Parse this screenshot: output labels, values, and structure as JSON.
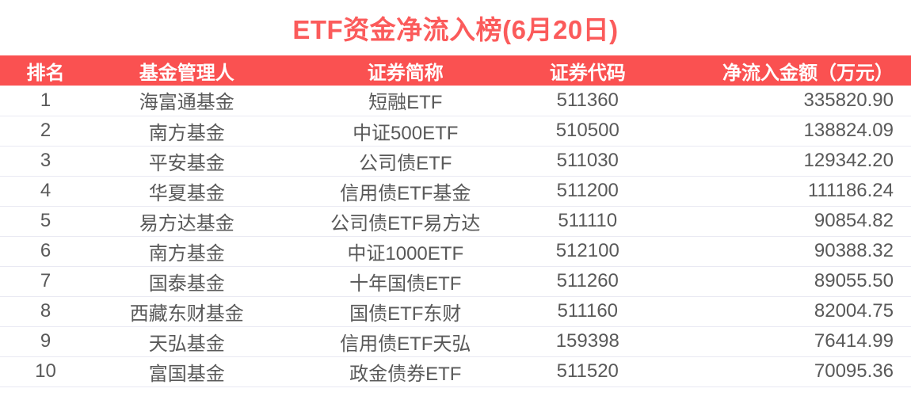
{
  "title": "ETF资金净流入榜(6月20日)",
  "chart_data": {
    "type": "table",
    "title": "ETF资金净流入榜(6月20日)",
    "columns": [
      "排名",
      "基金管理人",
      "证券简称",
      "证券代码",
      "净流入金额（万元）"
    ],
    "rows": [
      [
        "1",
        "海富通基金",
        "短融ETF",
        "511360",
        "335820.90"
      ],
      [
        "2",
        "南方基金",
        "中证500ETF",
        "510500",
        "138824.09"
      ],
      [
        "3",
        "平安基金",
        "公司债ETF",
        "511030",
        "129342.20"
      ],
      [
        "4",
        "华夏基金",
        "信用债ETF基金",
        "511200",
        "111186.24"
      ],
      [
        "5",
        "易方达基金",
        "公司债ETF易方达",
        "511110",
        "90854.82"
      ],
      [
        "6",
        "南方基金",
        "中证1000ETF",
        "512100",
        "90388.32"
      ],
      [
        "7",
        "国泰基金",
        "十年国债ETF",
        "511260",
        "89055.50"
      ],
      [
        "8",
        "西藏东财基金",
        "国债ETF东财",
        "511160",
        "82004.75"
      ],
      [
        "9",
        "天弘基金",
        "信用债ETF天弘",
        "159398",
        "76414.99"
      ],
      [
        "10",
        "富国基金",
        "政金债券ETF",
        "511520",
        "70095.36"
      ]
    ]
  },
  "colors": {
    "accent_red": "#fa5151",
    "title_red": "#fb5b5b",
    "header_text": "#ffffff",
    "body_text": "#595959",
    "row_divider": "#e9e9f3"
  }
}
